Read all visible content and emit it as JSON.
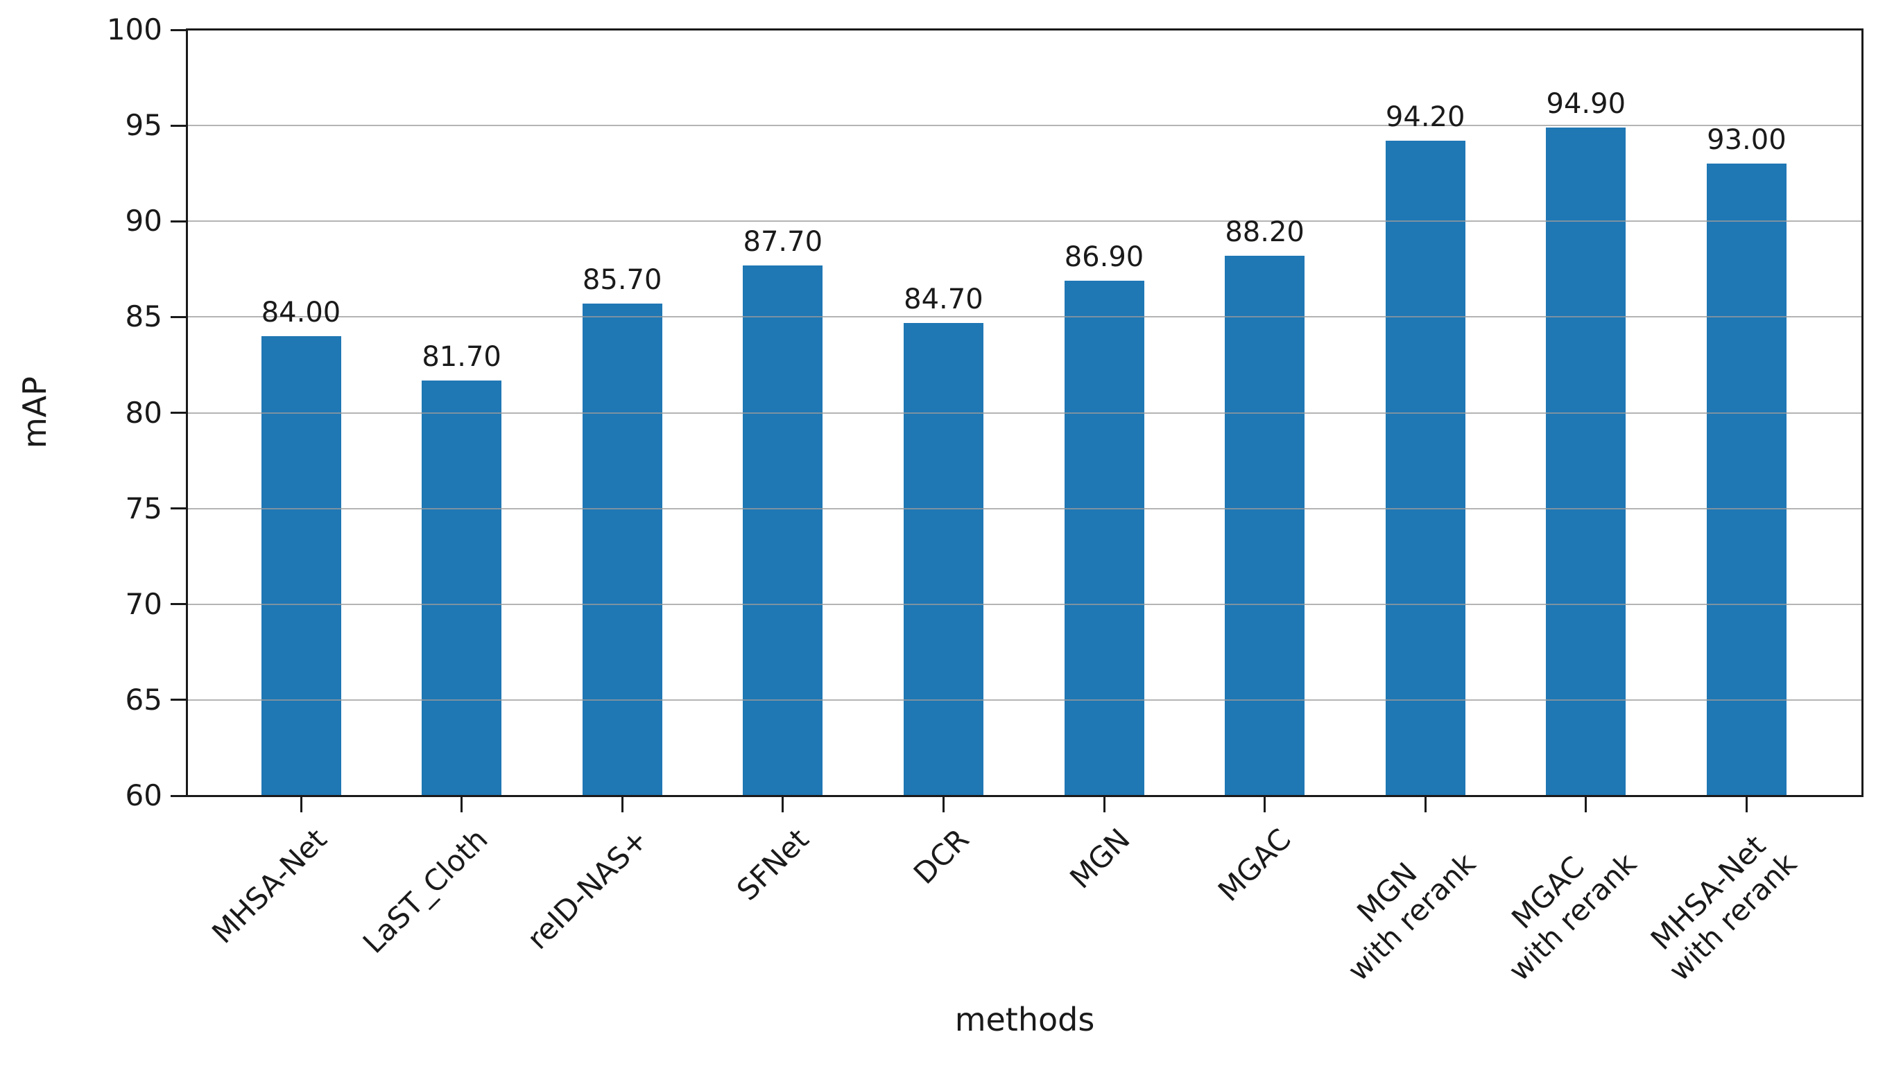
{
  "chart_data": {
    "type": "bar",
    "title": "",
    "xlabel": "methods",
    "ylabel": "mAP",
    "categories": [
      "MHSA-Net",
      "LaST_Cloth",
      "reID-NAS+",
      "SFNet",
      "DCR",
      "MGN",
      "MGAC",
      "MGN\nwith rerank",
      "MGAC\nwith rerank",
      "MHSA-Net\nwith rerank"
    ],
    "values": [
      84.0,
      81.7,
      85.7,
      87.7,
      84.7,
      86.9,
      88.2,
      94.2,
      94.9,
      93.0
    ],
    "value_labels": [
      "84.00",
      "81.70",
      "85.70",
      "87.70",
      "84.70",
      "86.90",
      "88.20",
      "94.20",
      "94.90",
      "93.00"
    ],
    "ylim": [
      60,
      100
    ],
    "yticks": [
      100,
      95,
      90,
      85,
      80,
      75,
      70,
      65,
      60
    ],
    "grid": true,
    "legend_position": "none",
    "bar_color": "#1f77b4",
    "grid_color": "#9b9b9b",
    "axis_color": "#1a1a1a"
  }
}
